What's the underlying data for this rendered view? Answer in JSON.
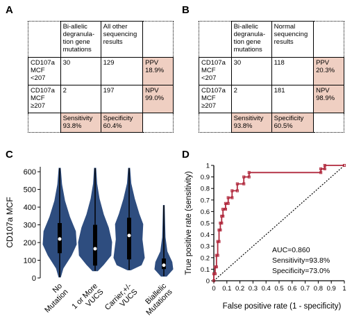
{
  "panels": {
    "a": {
      "letter": "A",
      "headers": [
        "Bi-allelic degranula- tion gene mutations",
        "All other sequencing results"
      ],
      "rows": [
        {
          "label": "CD107a MCF <207",
          "c1": "30",
          "c2": "129",
          "stat_label": "PPV",
          "stat_value": "18.9%"
        },
        {
          "label": "CD107a MCF ≥207",
          "c1": "2",
          "c2": "197",
          "stat_label": "NPV",
          "stat_value": "99.0%"
        }
      ],
      "bottom": [
        {
          "label": "Sensitivity",
          "value": "93.8%"
        },
        {
          "label": "Specificity",
          "value": "60.4%"
        }
      ]
    },
    "b": {
      "letter": "B",
      "headers": [
        "Bi-allelic degranula- tion gene mutations",
        "Normal sequencing results"
      ],
      "rows": [
        {
          "label": "CD107a MCF <207",
          "c1": "30",
          "c2": "118",
          "stat_label": "PPV",
          "stat_value": "20.3%"
        },
        {
          "label": "CD107a MCF ≥207",
          "c1": "2",
          "c2": "181",
          "stat_label": "NPV",
          "stat_value": "98.9%"
        }
      ],
      "bottom": [
        {
          "label": "Sensitivity",
          "value": "93.8%"
        },
        {
          "label": "Specificity",
          "value": "60.5%"
        }
      ]
    },
    "c": {
      "letter": "C"
    },
    "d": {
      "letter": "D"
    }
  },
  "colors": {
    "pink_cell": "#efcfc2",
    "violin_fill": "#2e4d7f",
    "roc_line": "#b0283c"
  },
  "chart_data": [
    {
      "type": "violin",
      "ylabel": "CD107a MCF",
      "ylim": [
        0,
        620
      ],
      "yticks": [
        "0",
        "100",
        "200",
        "300",
        "400",
        "500",
        "600"
      ],
      "categories": [
        "No Mutation",
        "1 or More VUCS",
        "Carrier,+/- VUCS",
        "Biallelic Mutations"
      ],
      "medians": [
        220,
        165,
        240,
        72
      ],
      "iqr": [
        [
          140,
          310
        ],
        [
          70,
          300
        ],
        [
          105,
          340
        ],
        [
          50,
          110
        ]
      ],
      "whiskers": [
        [
          5,
          620
        ],
        [
          40,
          620
        ],
        [
          45,
          620
        ],
        [
          10,
          410
        ]
      ]
    },
    {
      "type": "line",
      "xlabel": "False positive rate (1 - specificity)",
      "ylabel": "True positive rate (sensitivity)",
      "xlim": [
        0,
        1
      ],
      "ylim": [
        0,
        1
      ],
      "xticks": [
        "0",
        "0.1",
        "0.2",
        "0.3",
        "0.4",
        "0.5",
        "0.6",
        "0.7",
        "0.8",
        "0.9",
        "1"
      ],
      "yticks": [
        "0",
        "0.1",
        "0.2",
        "0.3",
        "0.4",
        "0.5",
        "0.6",
        "0.7",
        "0.8",
        "0.9",
        "1"
      ],
      "roc_x": [
        0,
        0,
        0.01,
        0.01,
        0.02,
        0.02,
        0.03,
        0.03,
        0.04,
        0.04,
        0.05,
        0.05,
        0.06,
        0.06,
        0.07,
        0.07,
        0.09,
        0.09,
        0.11,
        0.11,
        0.14,
        0.14,
        0.18,
        0.18,
        0.23,
        0.23,
        0.27,
        0.27,
        0.82,
        0.82,
        0.85,
        0.85,
        1
      ],
      "roc_y": [
        0,
        0.06,
        0.06,
        0.12,
        0.12,
        0.22,
        0.22,
        0.34,
        0.34,
        0.44,
        0.44,
        0.5,
        0.5,
        0.56,
        0.56,
        0.62,
        0.62,
        0.67,
        0.67,
        0.72,
        0.72,
        0.78,
        0.78,
        0.84,
        0.84,
        0.9,
        0.9,
        0.938,
        0.938,
        0.97,
        0.97,
        1,
        1
      ],
      "annotations": [
        "AUC=0.860",
        "Sensitivity=93.8%",
        "Specificity=73.0%"
      ]
    }
  ]
}
